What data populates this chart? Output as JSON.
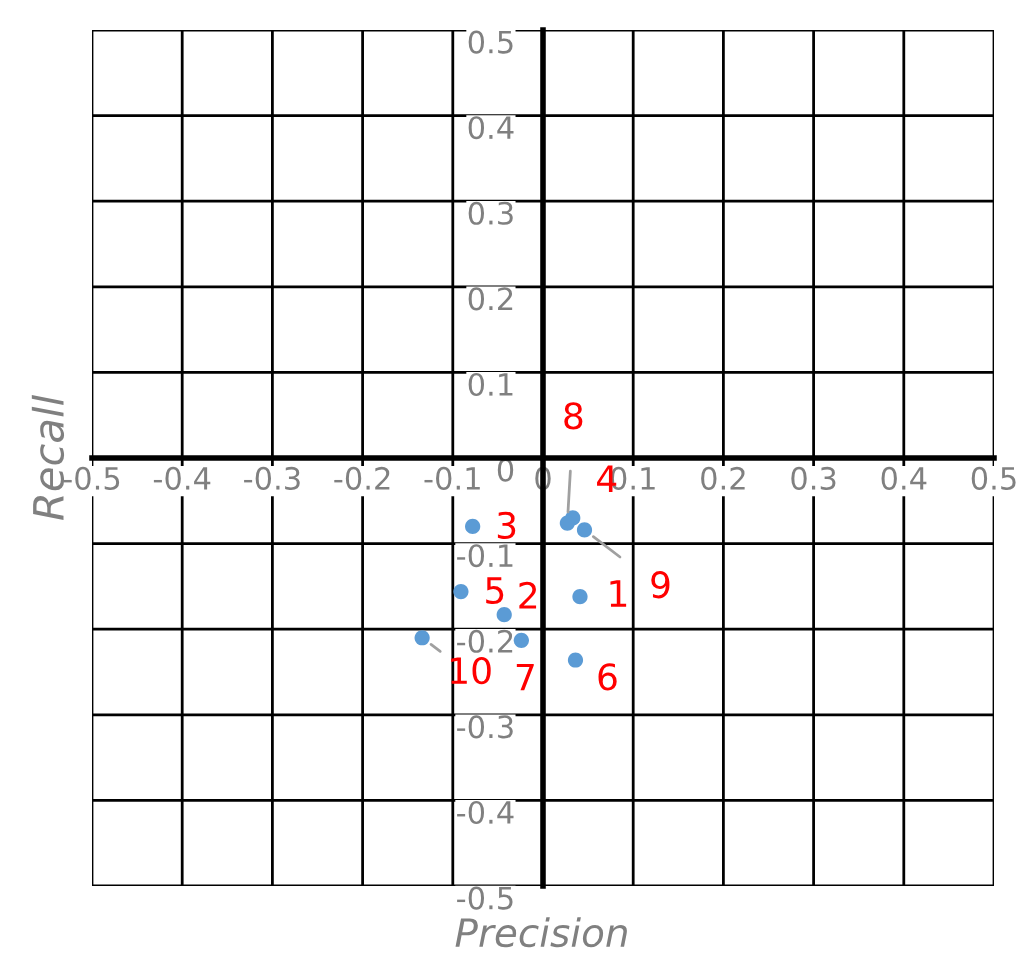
{
  "chart_data": {
    "type": "scatter",
    "xlabel": "Precision",
    "ylabel": "Recall",
    "x": [
      0.041,
      -0.043,
      -0.078,
      0.033,
      -0.091,
      0.036,
      -0.024,
      0.027,
      0.046,
      -0.134
    ],
    "values": [
      -0.162,
      -0.183,
      -0.08,
      -0.07,
      -0.156,
      -0.236,
      -0.213,
      -0.076,
      -0.084,
      -0.21
    ],
    "color": "#5b9bd5",
    "marker": "circle",
    "grid": true,
    "legend": false,
    "xlim": [
      -0.5,
      0.5
    ],
    "ylim": [
      -0.5,
      0.5
    ],
    "xticks": [
      -0.5,
      -0.4,
      -0.3,
      -0.2,
      -0.1,
      0,
      0.1,
      0.2,
      0.3,
      0.4,
      0.5
    ],
    "yticks": [
      -0.5,
      -0.4,
      -0.3,
      -0.2,
      -0.1,
      0,
      0.1,
      0.2,
      0.3,
      0.4,
      0.5
    ],
    "annotations": [
      {
        "text": "1",
        "x": 0.041,
        "y": -0.162
      },
      {
        "text": "2",
        "x": -0.043,
        "y": -0.183
      },
      {
        "text": "3",
        "x": -0.078,
        "y": -0.08
      },
      {
        "text": "4",
        "x": 0.033,
        "y": -0.07
      },
      {
        "text": "5",
        "x": -0.091,
        "y": -0.156
      },
      {
        "text": "6",
        "x": 0.036,
        "y": -0.236
      },
      {
        "text": "7",
        "x": -0.024,
        "y": -0.213
      },
      {
        "text": "8",
        "x": 0.027,
        "y": -0.076
      },
      {
        "text": "9",
        "x": 0.046,
        "y": -0.084
      },
      {
        "text": "10",
        "x": -0.134,
        "y": -0.21
      }
    ]
  }
}
